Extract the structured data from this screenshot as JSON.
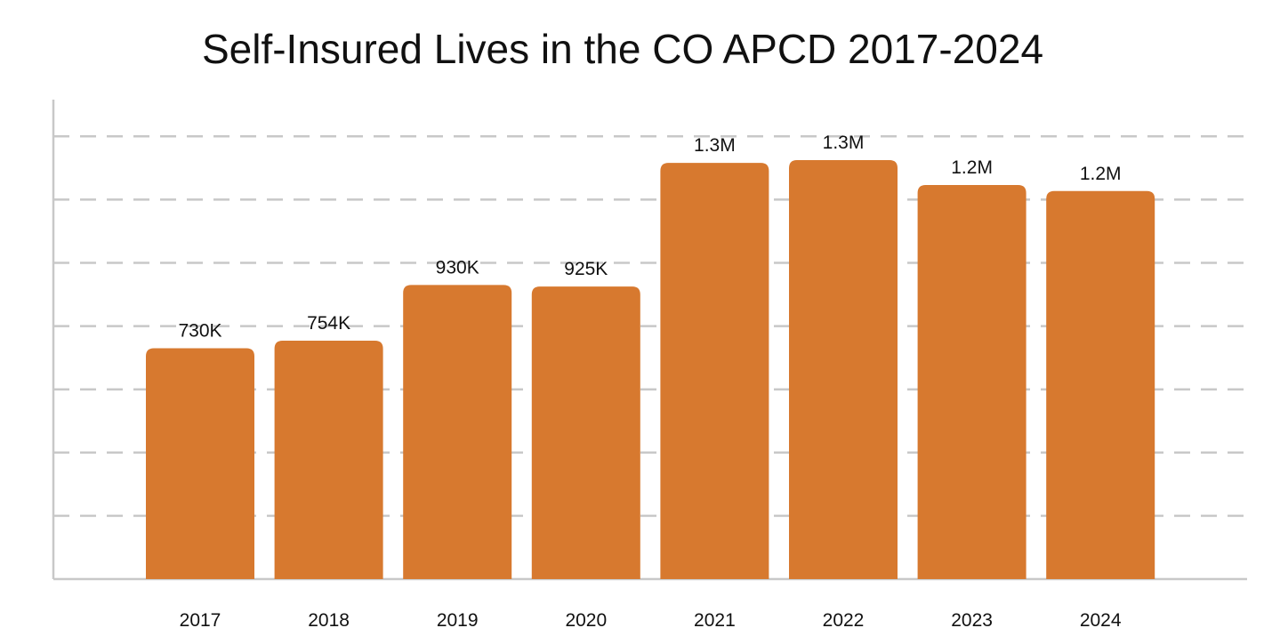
{
  "chart_data": {
    "type": "bar",
    "title": "Self-Insured Lives in the CO APCD 2017-2024",
    "xlabel": "",
    "ylabel": "",
    "categories": [
      "2017",
      "2018",
      "2019",
      "2020",
      "2021",
      "2022",
      "2023",
      "2024"
    ],
    "values": [
      730000,
      754000,
      930000,
      925000,
      1316000,
      1325000,
      1246000,
      1227000
    ],
    "data_labels": [
      "730K",
      "754K",
      "930K",
      "925K",
      "1.3M",
      "1.3M",
      "1.2M",
      "1.2M"
    ],
    "ylim": [
      0,
      1500000
    ],
    "y_gridlines": [
      200000,
      400000,
      600000,
      800000,
      1000000,
      1200000,
      1400000
    ],
    "grid": true,
    "grid_style": "dashed",
    "y_tick_labels_shown": false,
    "legend": "none",
    "bar_color": "#d7792f",
    "grid_color": "#c8c8c8",
    "text_color": "#111111"
  }
}
